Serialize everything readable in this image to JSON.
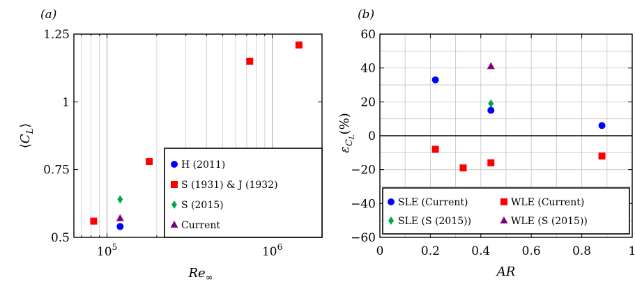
{
  "chart_data": [
    {
      "panel": "(a)",
      "type": "scatter",
      "x_scale": "log",
      "xlim": [
        63000,
        2000000
      ],
      "ylim": [
        0.5,
        1.25
      ],
      "x_ticks": [
        {
          "value": 100000,
          "base": "10",
          "exp": "5"
        },
        {
          "value": 1000000,
          "base": "10",
          "exp": "6"
        }
      ],
      "y_ticks": [
        {
          "value": 0.5,
          "label": "0.5"
        },
        {
          "value": 0.75,
          "label": "0.75"
        },
        {
          "value": 1.0,
          "label": "1"
        },
        {
          "value": 1.25,
          "label": "1.25"
        }
      ],
      "xlabel": {
        "main": "Re",
        "sub": "∞"
      },
      "ylabel": {
        "open": "⟨",
        "main": "C",
        "sub": "L",
        "close": "⟩"
      },
      "grid": "x-major-and-minor",
      "legend_position": "bottom-right",
      "series": [
        {
          "name": "H (2011)",
          "marker": "circle",
          "color": "#0000ff",
          "points": [
            {
              "x": 120000,
              "y": 0.54
            }
          ]
        },
        {
          "name": "S (1931) & J (1932)",
          "marker": "square",
          "color": "#ff0000",
          "points": [
            {
              "x": 83000,
              "y": 0.56
            },
            {
              "x": 180000,
              "y": 0.78
            },
            {
              "x": 730000,
              "y": 1.15
            },
            {
              "x": 1450000,
              "y": 1.21
            }
          ]
        },
        {
          "name": "S (2015)",
          "marker": "diamond",
          "color": "#00a651",
          "points": [
            {
              "x": 120000,
              "y": 0.64
            }
          ]
        },
        {
          "name": "Current",
          "marker": "triangle",
          "color": "#7f007f",
          "points": [
            {
              "x": 120000,
              "y": 0.57
            }
          ]
        }
      ]
    },
    {
      "panel": "(b)",
      "type": "scatter",
      "xlim": [
        0,
        1
      ],
      "ylim": [
        -60,
        60
      ],
      "x_ticks": [
        {
          "value": 0,
          "label": "0"
        },
        {
          "value": 0.2,
          "label": "0.2"
        },
        {
          "value": 0.4,
          "label": "0.4"
        },
        {
          "value": 0.6,
          "label": "0.6"
        },
        {
          "value": 0.8,
          "label": "0.8"
        },
        {
          "value": 1,
          "label": "1"
        }
      ],
      "y_ticks": [
        {
          "value": -60,
          "label": "−60"
        },
        {
          "value": -40,
          "label": "−40"
        },
        {
          "value": -20,
          "label": "−20"
        },
        {
          "value": 0,
          "label": "0"
        },
        {
          "value": 20,
          "label": "20"
        },
        {
          "value": 40,
          "label": "40"
        },
        {
          "value": 60,
          "label": "60"
        }
      ],
      "xlabel": {
        "main": "AR"
      },
      "ylabel": {
        "main": "ε",
        "sub": "C",
        "subsub": "L",
        "tail": "(%)"
      },
      "grid": "major",
      "zero_line": true,
      "legend_position": "bottom",
      "series": [
        {
          "name": "SLE (Current)",
          "marker": "circle",
          "color": "#0000ff",
          "points": [
            {
              "x": 0.22,
              "y": 33
            },
            {
              "x": 0.44,
              "y": 15
            },
            {
              "x": 0.88,
              "y": 6
            }
          ]
        },
        {
          "name": "WLE (Current)",
          "marker": "square",
          "color": "#ff0000",
          "points": [
            {
              "x": 0.22,
              "y": -8
            },
            {
              "x": 0.33,
              "y": -19
            },
            {
              "x": 0.44,
              "y": -16
            },
            {
              "x": 0.88,
              "y": -12
            }
          ]
        },
        {
          "name": "SLE (S (2015))",
          "marker": "diamond",
          "color": "#00a651",
          "points": [
            {
              "x": 0.44,
              "y": 19
            }
          ]
        },
        {
          "name": "WLE (S (2015))",
          "marker": "triangle",
          "color": "#7f007f",
          "points": [
            {
              "x": 0.44,
              "y": 41
            }
          ]
        }
      ]
    }
  ]
}
